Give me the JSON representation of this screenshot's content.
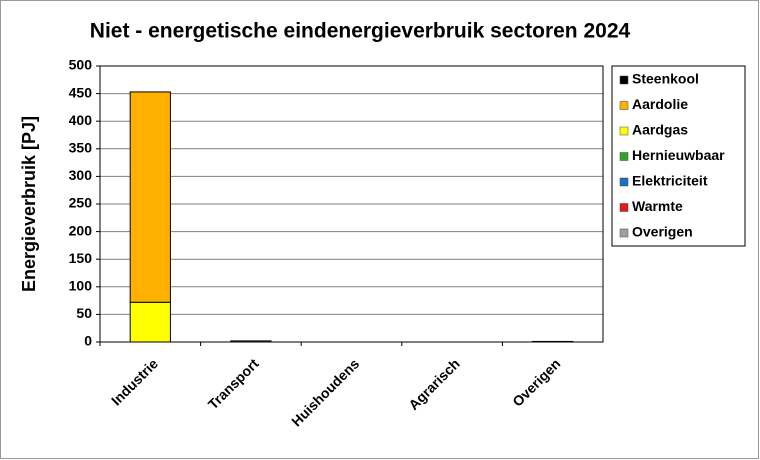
{
  "chart_data": {
    "type": "stacked_bar",
    "title": "Niet - energetische eindenergieverbruik sectoren 2024",
    "y_label": "Energieverbruik [PJ]",
    "categories": [
      "Industrie",
      "Transport",
      "Huishoudens",
      "Agrarisch",
      "Overigen"
    ],
    "series": [
      {
        "name": "Steenkool",
        "color": "#000000",
        "values": [
          0,
          0,
          0,
          0,
          0
        ]
      },
      {
        "name": "Aardolie",
        "color": "#ffb000",
        "values": [
          381,
          2,
          0,
          0,
          1
        ]
      },
      {
        "name": "Aardgas",
        "color": "#ffff00",
        "values": [
          72,
          0,
          0,
          0,
          0
        ]
      },
      {
        "name": "Hernieuwbaar",
        "color": "#33a02c",
        "values": [
          0,
          0,
          0,
          0,
          0
        ]
      },
      {
        "name": "Elektriciteit",
        "color": "#1f6fbf",
        "values": [
          0,
          0,
          0,
          0,
          0
        ]
      },
      {
        "name": "Warmte",
        "color": "#e31a1c",
        "values": [
          0,
          0,
          0,
          0,
          0
        ]
      },
      {
        "name": "Overigen",
        "color": "#a0a0a0",
        "values": [
          0,
          0,
          0,
          0,
          0
        ]
      }
    ],
    "ylim": [
      0,
      500
    ],
    "yticks": [
      0,
      50,
      100,
      150,
      200,
      250,
      300,
      350,
      400,
      450,
      500
    ],
    "grid": true,
    "legend": "right"
  }
}
